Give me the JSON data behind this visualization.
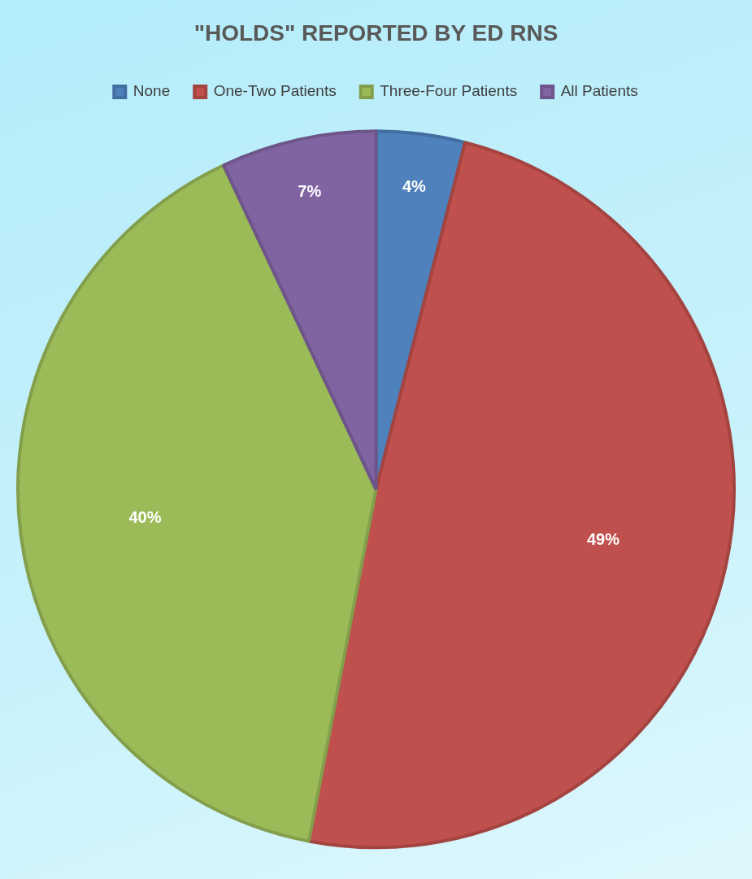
{
  "chart_data": {
    "type": "pie",
    "title": "\"HOLDS\" REPORTED BY ED RNS",
    "categories": [
      "None",
      "One-Two Patients",
      "Three-Four Patients",
      "All Patients"
    ],
    "values": [
      4,
      49,
      40,
      7
    ],
    "colors": [
      "#4f81bd",
      "#c0504d",
      "#9bbb59",
      "#8064a2"
    ],
    "value_labels": [
      "4%",
      "49%",
      "40%",
      "7%"
    ],
    "legend": "top"
  }
}
